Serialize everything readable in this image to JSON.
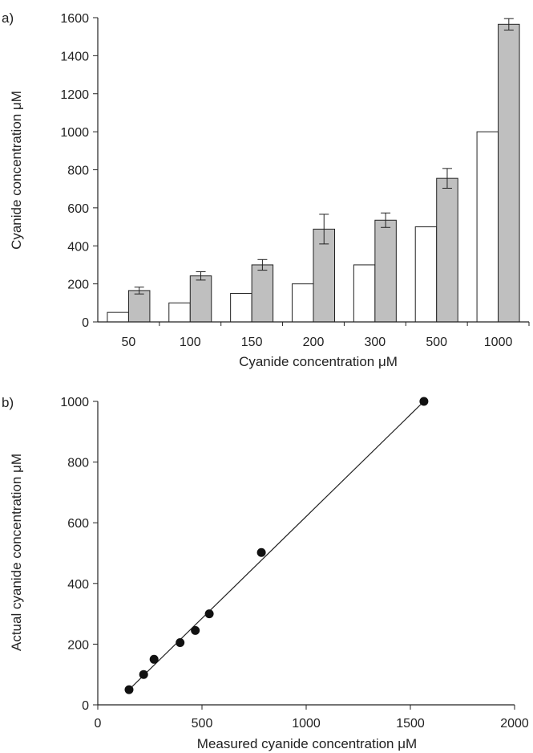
{
  "chart_data": [
    {
      "panel_label": "a)",
      "type": "bar",
      "categories": [
        "50",
        "100",
        "150",
        "200",
        "300",
        "500",
        "1000"
      ],
      "series": [
        {
          "color": "#ffffff",
          "values": [
            50,
            100,
            150,
            200,
            300,
            500,
            1000
          ]
        },
        {
          "color": "#bfbfbf",
          "values": [
            165,
            242,
            300,
            488,
            535,
            755,
            1565
          ],
          "errors": [
            18,
            22,
            28,
            78,
            38,
            52,
            30
          ]
        }
      ],
      "xlabel": "Cyanide concentration μM",
      "ylabel": "Cyanide concentration μM",
      "ylim": [
        0,
        1600
      ],
      "yticks": [
        0,
        200,
        400,
        600,
        800,
        1000,
        1200,
        1400,
        1600
      ],
      "grid": false
    },
    {
      "panel_label": "b)",
      "type": "scatter",
      "points": [
        {
          "x": 150,
          "y": 50
        },
        {
          "x": 220,
          "y": 100
        },
        {
          "x": 270,
          "y": 150
        },
        {
          "x": 395,
          "y": 205
        },
        {
          "x": 468,
          "y": 245
        },
        {
          "x": 535,
          "y": 300
        },
        {
          "x": 785,
          "y": 502
        },
        {
          "x": 1565,
          "y": 1000
        }
      ],
      "fit_line": {
        "x": [
          150,
          1565
        ],
        "y": [
          50,
          1000
        ]
      },
      "xlabel": "Measured cyanide concentration μM",
      "ylabel": "Actual cyanide concentration μM",
      "xlim": [
        0,
        2000
      ],
      "ylim": [
        0,
        1000
      ],
      "xticks": [
        0,
        500,
        1000,
        1500,
        2000
      ],
      "yticks": [
        0,
        200,
        400,
        600,
        800,
        1000
      ],
      "grid": false
    }
  ]
}
